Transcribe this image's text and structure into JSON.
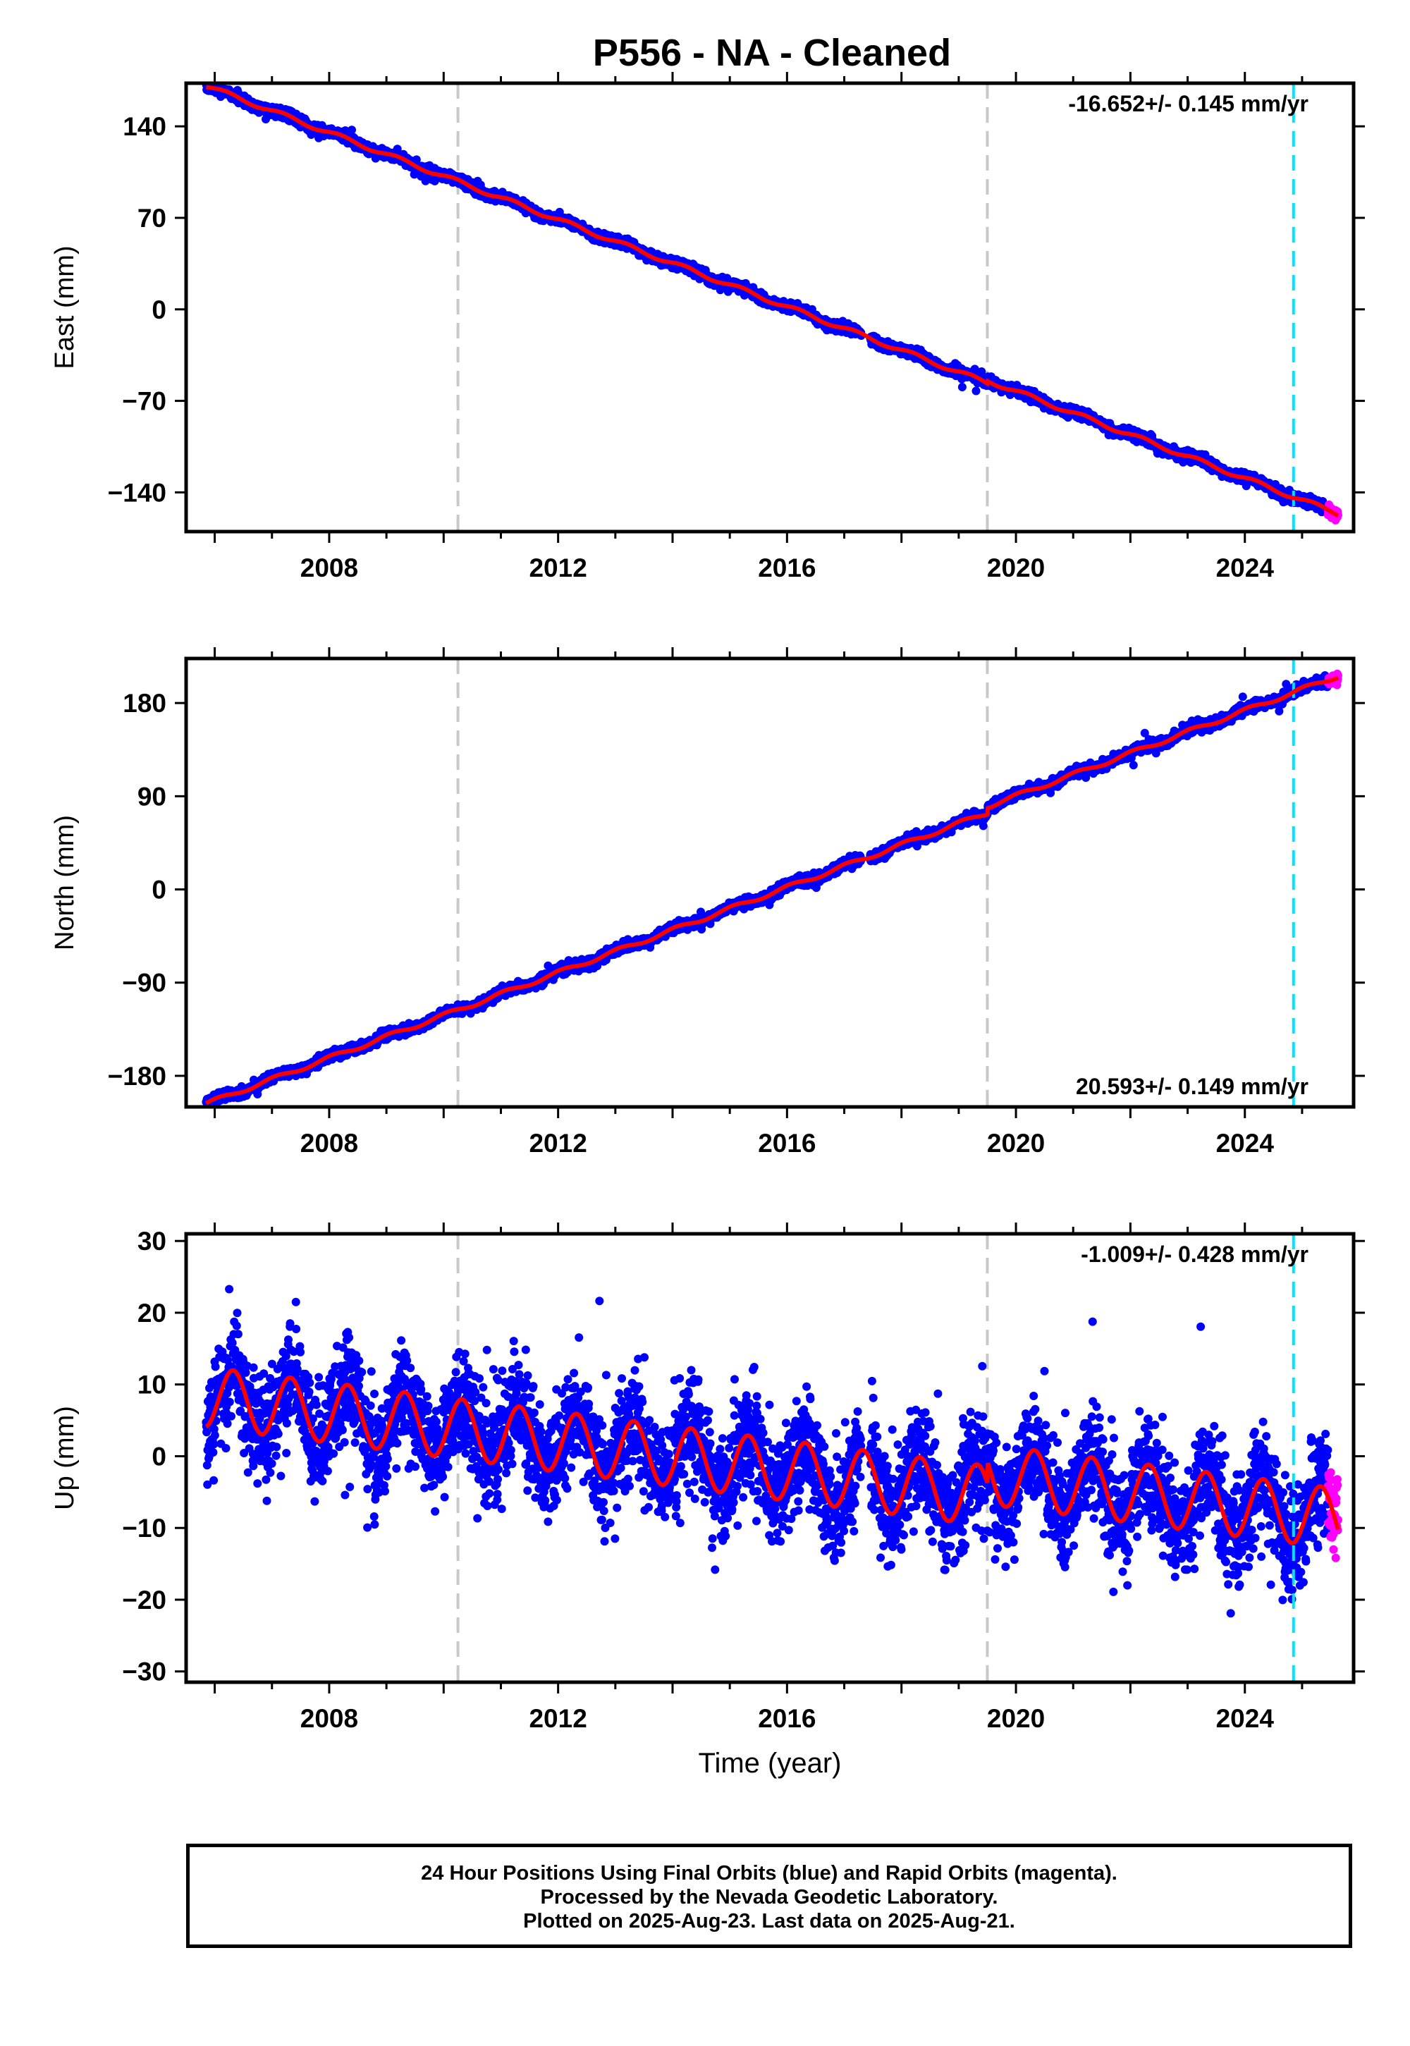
{
  "title": "P556  - NA - Cleaned",
  "xlabel": "Time (year)",
  "footer": {
    "line1": "24 Hour Positions Using Final Orbits (blue) and Rapid Orbits (magenta).",
    "line2": "Processed by the Nevada Geodetic Laboratory.",
    "line3": "Plotted on 2025-Aug-23. Last data on 2025-Aug-21."
  },
  "colors": {
    "final_points": "#0000ff",
    "rapid_points": "#ff00ff",
    "model": "#ff0000",
    "event_line": "#c8c8c8",
    "current_line": "#00e5ff"
  },
  "chart_data": [
    {
      "type": "scatter",
      "component": "east",
      "ylabel": "East (mm)",
      "rate_label": "-16.652+/- 0.145 mm/yr",
      "rate_position": "top-right",
      "xlim": [
        2005.5,
        2025.9
      ],
      "ylim": [
        -170,
        173
      ],
      "xticks": [
        2008,
        2012,
        2016,
        2020,
        2024
      ],
      "yticks": [
        -140,
        -70,
        0,
        70,
        140
      ],
      "event_lines": [
        2010.25,
        2019.5
      ],
      "current_line": 2024.85,
      "data_start": 2005.85,
      "rapid_start": 2025.45,
      "data_end": 2025.63,
      "rate": -16.652,
      "ref_epoch": 2016.0,
      "ref_value": 2,
      "season_amp": 1.6,
      "season_phase": 0.3,
      "noise_sd": 1.8,
      "offsets": [
        {
          "t": 2019.5,
          "size": 2
        }
      ]
    },
    {
      "type": "scatter",
      "component": "north",
      "ylabel": "North (mm)",
      "rate_label": "20.593+/- 0.149 mm/yr",
      "rate_position": "bottom-right",
      "xlim": [
        2005.5,
        2025.9
      ],
      "ylim": [
        -210,
        223
      ],
      "xticks": [
        2008,
        2012,
        2016,
        2020,
        2024
      ],
      "yticks": [
        -180,
        -90,
        0,
        90,
        180
      ],
      "event_lines": [
        2010.25,
        2019.5
      ],
      "current_line": 2024.85,
      "data_start": 2005.85,
      "rapid_start": 2025.45,
      "data_end": 2025.63,
      "rate": 20.593,
      "ref_epoch": 2016.0,
      "ref_value": 2,
      "season_amp": 2.0,
      "season_phase": 1.2,
      "noise_sd": 2.2,
      "offsets": [
        {
          "t": 2019.5,
          "size": 6
        }
      ]
    },
    {
      "type": "scatter",
      "component": "up",
      "ylabel": "Up (mm)",
      "rate_label": "-1.009+/- 0.428 mm/yr",
      "rate_position": "top-right",
      "xlim": [
        2005.5,
        2025.9
      ],
      "ylim": [
        -31.5,
        31
      ],
      "xticks": [
        2008,
        2012,
        2016,
        2020,
        2024
      ],
      "yticks": [
        -30,
        -20,
        -10,
        0,
        10,
        20,
        30
      ],
      "event_lines": [
        2010.25,
        2019.5
      ],
      "current_line": 2024.85,
      "data_start": 2005.85,
      "rapid_start": 2025.45,
      "data_end": 2025.63,
      "rate": -1.009,
      "ref_epoch": 2016.0,
      "ref_value": -2.0,
      "season_amp": 4.2,
      "season_phase": -0.45,
      "noise_sd": 3.6,
      "offsets": [
        {
          "t": 2019.5,
          "size": 3
        }
      ]
    }
  ]
}
